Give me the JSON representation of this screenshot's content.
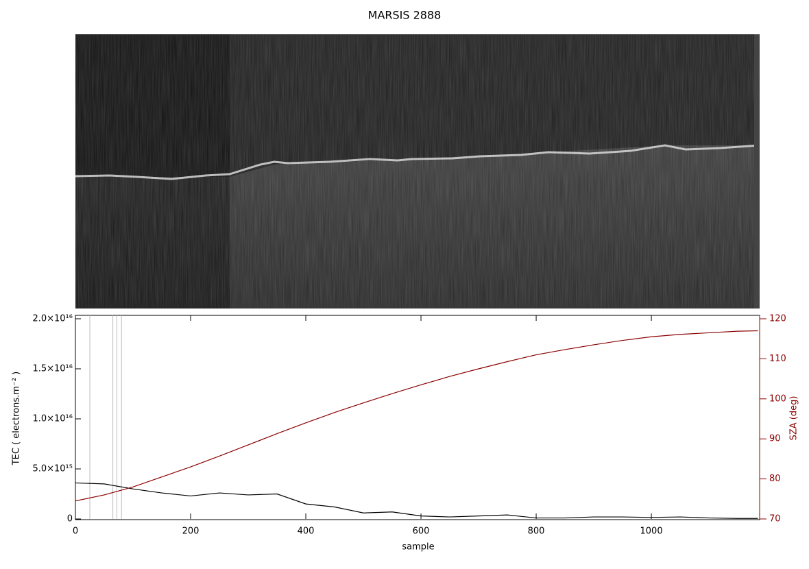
{
  "chart_data": {
    "type": "line",
    "title": "MARSIS 2888",
    "x_label": "sample",
    "y_label": "TEC ( electrons.m⁻² )",
    "y2_label": "SZA (deg)",
    "x": [
      0,
      50,
      100,
      150,
      200,
      250,
      300,
      350,
      400,
      450,
      500,
      550,
      600,
      650,
      700,
      750,
      800,
      850,
      900,
      950,
      1000,
      1050,
      1100,
      1150,
      1185
    ],
    "series": [
      {
        "name": "TEC",
        "color": "#000000",
        "values": [
          3600000000000000.0,
          3500000000000000.0,
          3000000000000000.0,
          2600000000000000.0,
          2300000000000000.0,
          2600000000000000.0,
          2400000000000000.0,
          2500000000000000.0,
          1500000000000000.0,
          1200000000000000.0,
          600000000000000.0,
          700000000000000.0,
          300000000000000.0,
          200000000000000.0,
          300000000000000.0,
          400000000000000.0,
          100000000000000.0,
          100000000000000.0,
          200000000000000.0,
          200000000000000.0,
          150000000000000.0,
          200000000000000.0,
          100000000000000.0,
          50000000000000.0,
          50000000000000.0
        ]
      },
      {
        "name": "SZA",
        "color": "#8b0000",
        "axis": "y2",
        "values": [
          74.5,
          76,
          78,
          80.5,
          83,
          85.7,
          88.5,
          91.3,
          94,
          96.6,
          99,
          101.3,
          103.5,
          105.6,
          107.5,
          109.3,
          111,
          112.3,
          113.5,
          114.6,
          115.5,
          116.1,
          116.5,
          116.9,
          117
        ]
      }
    ],
    "vlines": [
      25,
      65,
      72,
      80
    ],
    "xlim": [
      0,
      1188
    ],
    "xticks": [
      0,
      200,
      400,
      600,
      800,
      1000
    ],
    "ylim": [
      0,
      2e+16
    ],
    "yticks": [
      0,
      {
        "value": 5000000000000000.0,
        "label": "5.0×10¹⁵"
      },
      {
        "value": 1e+16,
        "label": "1.0×10¹⁶"
      },
      {
        "value": 1.5e+16,
        "label": "1.5×10¹⁶"
      },
      {
        "value": 2e+16,
        "label": "2.0×10¹⁶"
      }
    ],
    "y2lim": [
      70,
      120
    ],
    "y2ticks": [
      70,
      80,
      90,
      100,
      110,
      120
    ],
    "y2_color": "#8b0000"
  }
}
